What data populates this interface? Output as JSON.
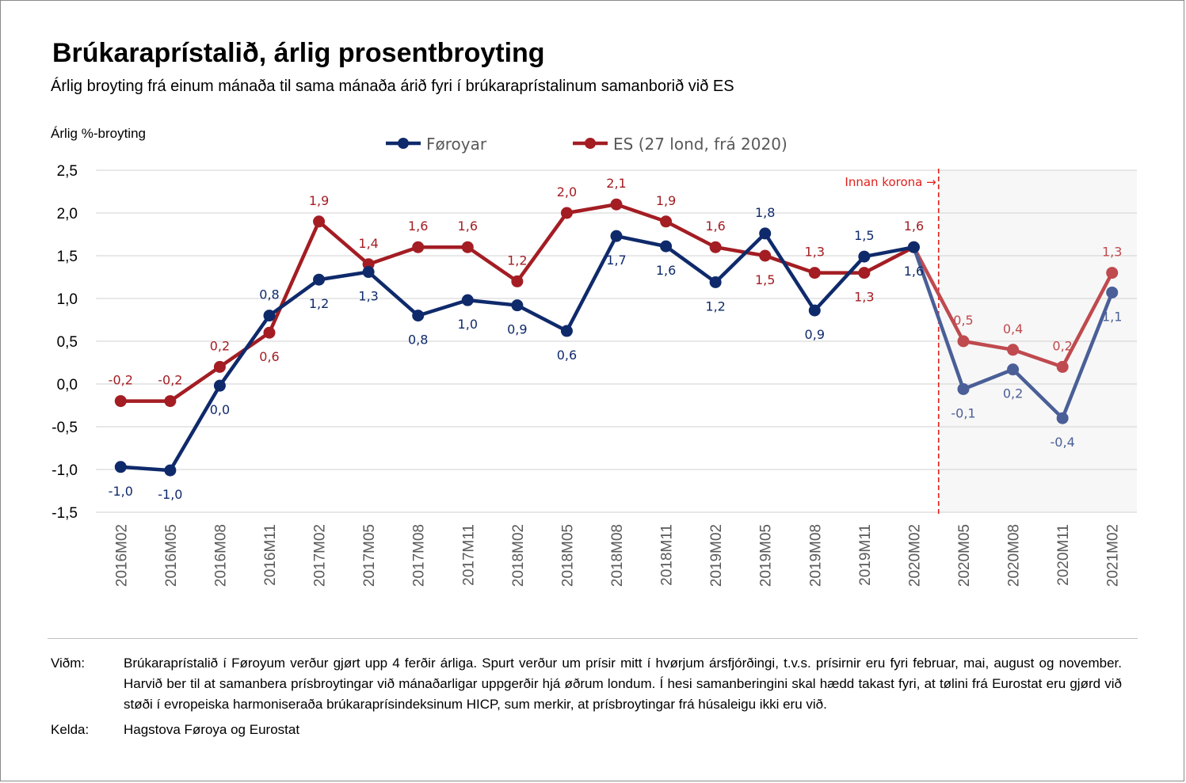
{
  "title": "Brúkaraprístalið, árlig prosentbroyting",
  "subtitle": "Árlig broyting frá einum mánaða til sama mánaða árið fyri í brúkaraprístalinum samanborið við ES",
  "colors": {
    "foroyar": "#0f2a6b",
    "foroyar_shaded": "#4a5f97",
    "es": "#a31d23",
    "es_shaded": "#bf4a4f",
    "annotation": "#e0201b",
    "shade": "#f7f7f7",
    "grid": "#d9d9d9"
  },
  "chart_data": {
    "type": "line",
    "ylabel": "Árlig %-broyting",
    "ylim": [
      -1.5,
      2.5
    ],
    "yticks": [
      "2,5",
      "2,0",
      "1,5",
      "1,0",
      "0,5",
      "0,0",
      "-0,5",
      "-1,0",
      "-1,5"
    ],
    "ytick_values": [
      2.5,
      2.0,
      1.5,
      1.0,
      0.5,
      0.0,
      -0.5,
      -1.0,
      -1.5
    ],
    "grid": true,
    "legend_position": "top",
    "categories": [
      "2016M02",
      "2016M05",
      "2016M08",
      "2016M11",
      "2017M02",
      "2017M05",
      "2017M08",
      "2017M11",
      "2018M02",
      "2018M05",
      "2018M08",
      "2018M11",
      "2019M02",
      "2019M05",
      "2019M08",
      "2019M11",
      "2020M02",
      "2020M05",
      "2020M08",
      "2020M11",
      "2021M02"
    ],
    "series": [
      {
        "name": "Føroyar",
        "color_key": "foroyar",
        "values": [
          -0.97,
          -1.01,
          -0.02,
          0.8,
          1.22,
          1.31,
          0.8,
          0.98,
          0.92,
          0.62,
          1.73,
          1.61,
          1.19,
          1.76,
          0.86,
          1.49,
          1.6,
          -0.06,
          0.17,
          -0.4,
          1.07
        ],
        "labels": [
          "-1,0",
          "-1,0",
          "0,0",
          "0,8",
          "1,2",
          "1,3",
          "0,8",
          "1,0",
          "0,9",
          "0,6",
          "1,7",
          "1,6",
          "1,2",
          "1,8",
          "0,9",
          "1,5",
          "1,6",
          "-0,1",
          "0,2",
          "-0,4",
          "1,1"
        ],
        "label_pos": [
          "below",
          "below",
          "below",
          "above",
          "below",
          "below",
          "below",
          "below",
          "below",
          "below",
          "below",
          "below",
          "below",
          "above",
          "below",
          "above",
          "below",
          "below",
          "below",
          "below",
          "below"
        ]
      },
      {
        "name": "ES (27 lond, frá 2020)",
        "color_key": "es",
        "values": [
          -0.2,
          -0.2,
          0.2,
          0.6,
          1.9,
          1.4,
          1.6,
          1.6,
          1.2,
          2.0,
          2.1,
          1.9,
          1.6,
          1.5,
          1.3,
          1.3,
          1.6,
          0.5,
          0.4,
          0.2,
          1.3
        ],
        "labels": [
          "-0,2",
          "-0,2",
          "0,2",
          "0,6",
          "1,9",
          "1,4",
          "1,6",
          "1,6",
          "1,2",
          "2,0",
          "2,1",
          "1,9",
          "1,6",
          "1,5",
          "1,3",
          "1,3",
          "1,6",
          "0,5",
          "0,4",
          "0,2",
          "1,3"
        ],
        "label_pos": [
          "above",
          "above",
          "above",
          "below",
          "above",
          "above",
          "above",
          "above",
          "above",
          "above",
          "above",
          "above",
          "above",
          "below",
          "above",
          "below",
          "above",
          "above",
          "above",
          "above",
          "above"
        ]
      }
    ],
    "annotation": {
      "text": "Innan korona →",
      "after_category": "2020M02",
      "shaded_from_category": "2020M05"
    }
  },
  "notes": {
    "note_key": "Viðm:",
    "note_text": "Brúkaraprístalið í Føroyum verður gjørt upp 4 ferðir árliga. Spurt verður um prísir mitt í hvørjum ársfjórðingi, t.v.s. prísirnir eru fyri februar, mai, august og november. Harvið ber til at samanbera prísbroytingar við mánaðarligar uppgerðir hjá øðrum londum. Í hesi samanberingini skal hædd takast fyri, at tølini frá Eurostat eru gjørd við støði í evropeiska harmoniseraða brúkaraprísindeksinum HICP, sum merkir, at prísbroytingar frá húsaleigu ikki eru við.",
    "source_key": "Kelda:",
    "source_text": "Hagstova Føroya og Eurostat"
  }
}
